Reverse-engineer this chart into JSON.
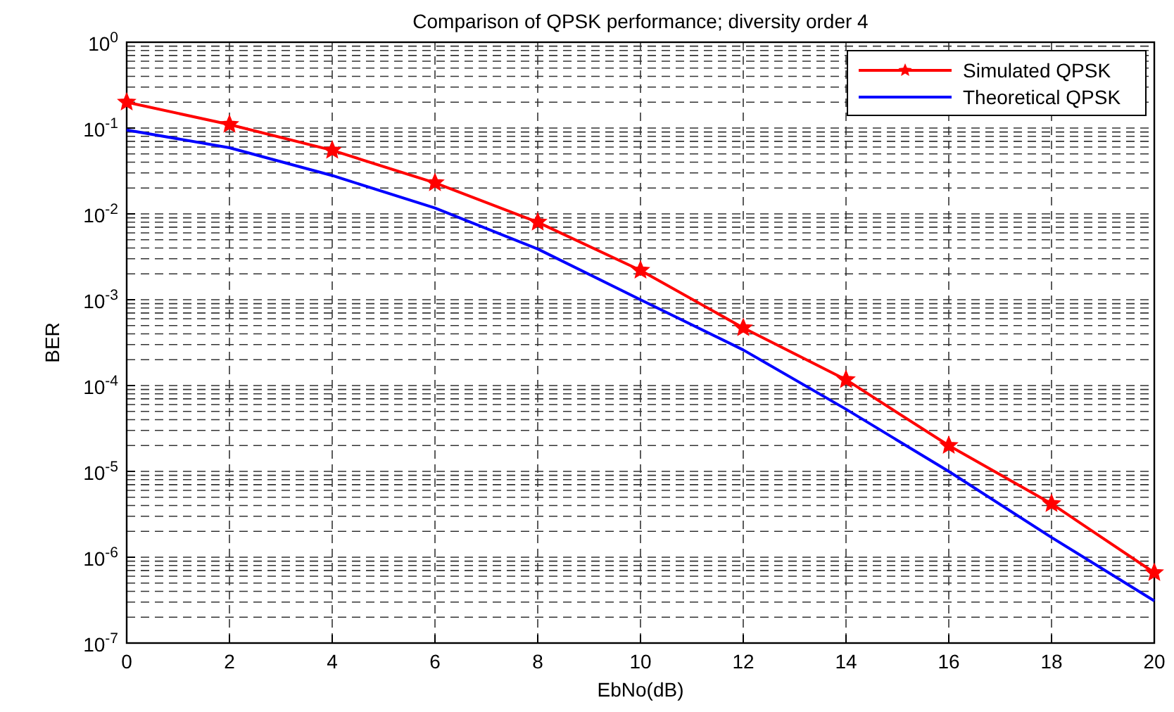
{
  "chart_data": {
    "type": "line",
    "title": "Comparison of QPSK performance; diversity order 4",
    "xlabel": "EbNo(dB)",
    "ylabel": "BER",
    "log": "y",
    "grid": true,
    "legend": "top right",
    "line_style": "solid",
    "x": [
      0,
      2,
      4,
      6,
      8,
      10,
      12,
      14,
      16,
      18,
      20
    ],
    "xlim": [
      0,
      20
    ],
    "xticks": [
      0,
      2,
      4,
      6,
      8,
      10,
      12,
      14,
      16,
      18,
      20
    ],
    "ylim": [
      1e-07,
      1
    ],
    "yticks": [
      {
        "value": 1,
        "label": "10$^{0}$"
      },
      {
        "value": 0.1,
        "label": "10$^{-1}$"
      },
      {
        "value": 0.01,
        "label": "10$^{-2}$"
      },
      {
        "value": 0.001,
        "label": "10$^{-3}$"
      },
      {
        "value": 0.0001,
        "label": "10$^{-4}$"
      },
      {
        "value": 1e-05,
        "label": "10$^{-5}$"
      },
      {
        "value": 1e-06,
        "label": "10$^{-6}$"
      },
      {
        "value": 1e-07,
        "label": "10$^{-7}$"
      }
    ],
    "series": [
      {
        "name": "Simulated QPSK",
        "color": "#ff0000",
        "marker": "star",
        "values": [
          0.2,
          0.11,
          0.055,
          0.023,
          0.008,
          0.0022,
          0.00047,
          0.000117,
          2e-05,
          4.2e-06,
          6.6e-07
        ]
      },
      {
        "name": "Theoretical QPSK",
        "color": "#0000ff",
        "marker": "none",
        "values": [
          0.095,
          0.059,
          0.028,
          0.0117,
          0.0039,
          0.001,
          0.00026,
          5.3e-05,
          1e-05,
          1.7e-06,
          3.1e-07
        ]
      }
    ]
  }
}
